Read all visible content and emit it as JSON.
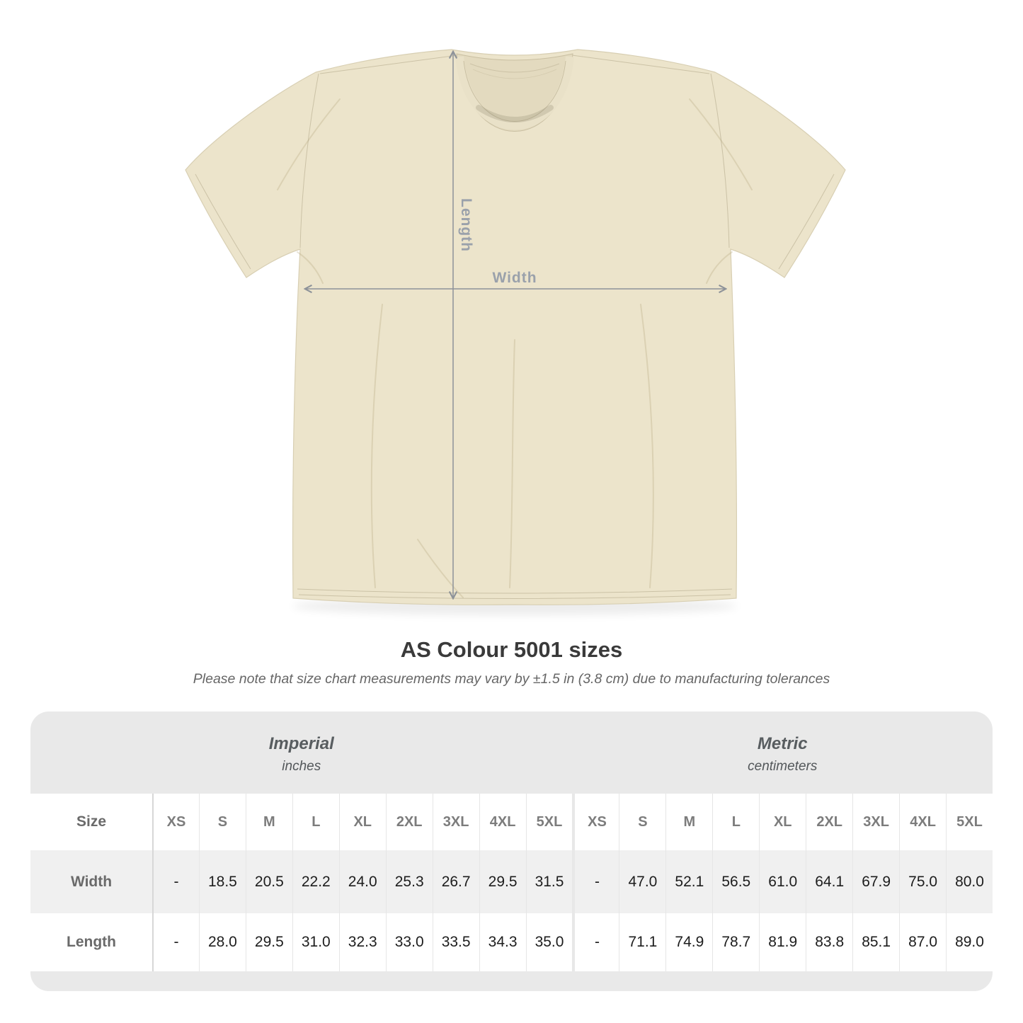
{
  "diagram": {
    "length_label": "Length",
    "width_label": "Width"
  },
  "heading": {
    "title": "AS Colour 5001 sizes",
    "subtitle": "Please note that size chart measurements may vary by ±1.5 in (3.8 cm) due to manufacturing tolerances"
  },
  "chart_data": {
    "type": "table",
    "title": "AS Colour 5001 sizes",
    "corner_label": "Size",
    "unit_groups": [
      {
        "label": "Imperial",
        "unit": "inches"
      },
      {
        "label": "Metric",
        "unit": "centimeters"
      }
    ],
    "sizes": [
      "XS",
      "S",
      "M",
      "L",
      "XL",
      "2XL",
      "3XL",
      "4XL",
      "5XL"
    ],
    "rows": [
      {
        "label": "Width",
        "imperial": [
          "-",
          "18.5",
          "20.5",
          "22.2",
          "24.0",
          "25.3",
          "26.7",
          "29.5",
          "31.5"
        ],
        "metric": [
          "-",
          "47.0",
          "52.1",
          "56.5",
          "61.0",
          "64.1",
          "67.9",
          "75.0",
          "80.0"
        ]
      },
      {
        "label": "Length",
        "imperial": [
          "-",
          "28.0",
          "29.5",
          "31.0",
          "32.3",
          "33.0",
          "33.5",
          "34.3",
          "35.0"
        ],
        "metric": [
          "-",
          "71.1",
          "74.9",
          "78.7",
          "81.9",
          "83.8",
          "85.1",
          "87.0",
          "89.0"
        ]
      }
    ]
  },
  "colors": {
    "shirt": "#ece4cb",
    "arrow": "#8d9299",
    "measure_label": "#9aa1ab",
    "band": "#e9e9e9",
    "stripe": "#f0f0f0"
  }
}
